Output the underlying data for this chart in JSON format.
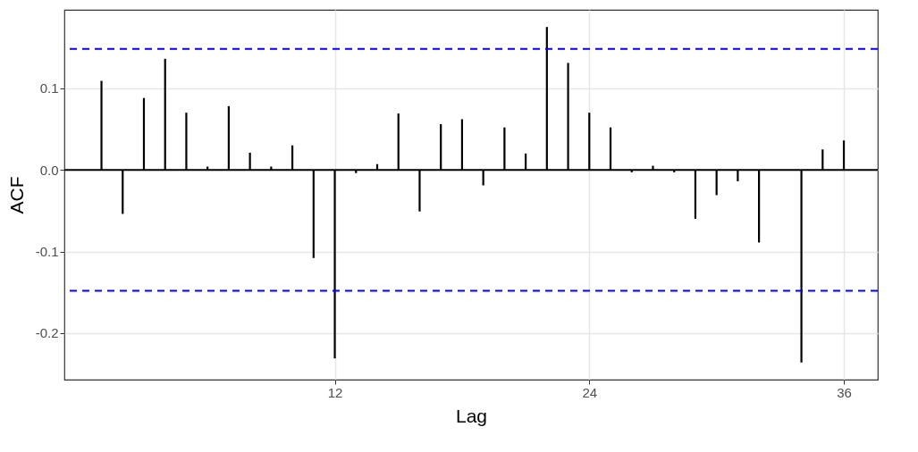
{
  "chart_data": {
    "type": "bar",
    "xlabel": "Lag",
    "ylabel": "ACF",
    "x": [
      1,
      2,
      3,
      4,
      5,
      6,
      7,
      8,
      9,
      10,
      11,
      12,
      13,
      14,
      15,
      16,
      17,
      18,
      19,
      20,
      21,
      22,
      23,
      24,
      25,
      26,
      27,
      28,
      29,
      30,
      31,
      32,
      33,
      34,
      35,
      36
    ],
    "series": [
      {
        "color": "#000000",
        "values": [
          0.109,
          -0.054,
          0.088,
          0.136,
          0.07,
          0.004,
          0.078,
          0.021,
          0.004,
          0.03,
          -0.108,
          -0.231,
          -0.004,
          0.007,
          0.069,
          -0.051,
          0.056,
          0.062,
          -0.019,
          0.052,
          0.02,
          0.175,
          0.131,
          0.07,
          0.052,
          -0.003,
          0.005,
          -0.003,
          -0.06,
          -0.031,
          -0.014,
          -0.089,
          0.0,
          -0.236,
          0.025,
          0.036
        ]
      }
    ],
    "xlim": [
      -0.75,
      37.6
    ],
    "xticks": [
      12,
      24,
      36
    ],
    "ylim": [
      -0.257,
      0.196
    ],
    "yticks": [
      -0.2,
      -0.1,
      {
        "value": 0,
        "label": "0.0"
      },
      0.1
    ],
    "grid": true,
    "ref_lines": [
      {
        "axis": "y",
        "value": 0,
        "color": "#000000",
        "line_style": "solid"
      },
      {
        "axis": "y",
        "value": 0.148,
        "color": "#0000ff",
        "line_style": "dashed"
      },
      {
        "axis": "y",
        "value": -0.148,
        "color": "#0000ff",
        "line_style": "dashed"
      }
    ]
  }
}
